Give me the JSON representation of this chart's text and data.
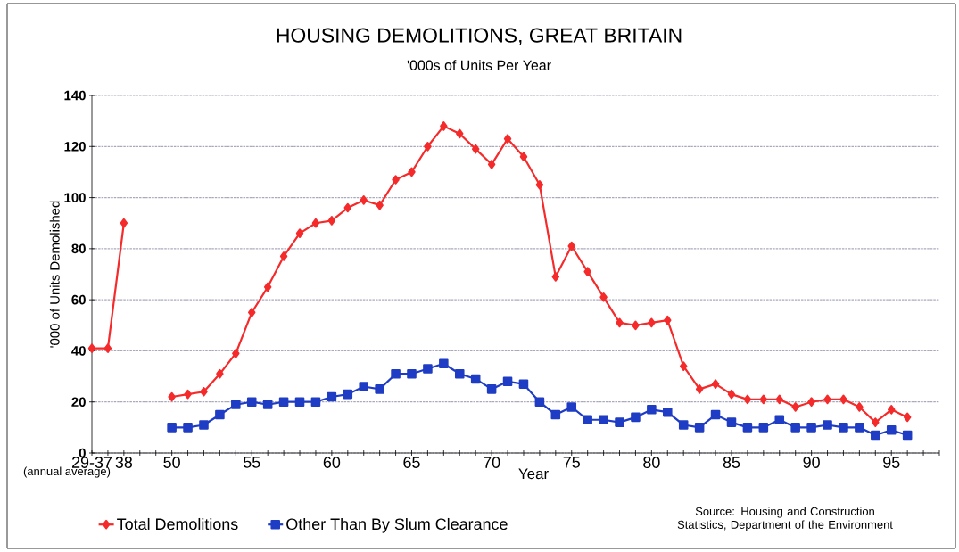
{
  "chart_data": {
    "type": "line",
    "title": "HOUSING DEMOLITIONS, GREAT BRITAIN",
    "subtitle": "'000s of Units Per Year",
    "xlabel": "Year",
    "ylabel": "'000 of Units Demolished",
    "categories": [
      "29-37",
      null,
      "38",
      null,
      null,
      "50",
      null,
      null,
      null,
      null,
      "55",
      null,
      null,
      null,
      null,
      "60",
      null,
      null,
      null,
      null,
      "65",
      null,
      null,
      null,
      null,
      "70",
      null,
      null,
      null,
      null,
      "75",
      null,
      null,
      null,
      null,
      "80",
      null,
      null,
      null,
      null,
      "85",
      null,
      null,
      null,
      null,
      "90",
      null,
      null,
      null,
      null,
      "95",
      null,
      null,
      null
    ],
    "series": [
      {
        "name": "Total Demolitions",
        "color": "#f52a2a",
        "marker": "diamond",
        "values": [
          41,
          41,
          90,
          null,
          null,
          22,
          23,
          24,
          31,
          39,
          55,
          65,
          77,
          86,
          90,
          91,
          96,
          99,
          97,
          107,
          110,
          120,
          128,
          125,
          119,
          113,
          123,
          116,
          105,
          69,
          81,
          71,
          61,
          51,
          50,
          51,
          52,
          34,
          25,
          27,
          23,
          21,
          21,
          21,
          18,
          20,
          21,
          21,
          18,
          12,
          17,
          14,
          null,
          null
        ]
      },
      {
        "name": "Other Than By Slum Clearance",
        "color": "#1f3cc4",
        "marker": "square",
        "values": [
          null,
          null,
          null,
          null,
          null,
          10,
          10,
          11,
          15,
          19,
          20,
          19,
          20,
          20,
          20,
          22,
          23,
          26,
          25,
          31,
          31,
          33,
          35,
          31,
          29,
          25,
          28,
          27,
          20,
          15,
          18,
          13,
          13,
          12,
          14,
          17,
          16,
          11,
          10,
          15,
          12,
          10,
          10,
          13,
          10,
          10,
          11,
          10,
          10,
          7,
          9,
          7,
          null,
          null
        ]
      }
    ],
    "ylim": [
      0,
      140
    ],
    "yticks": [
      0,
      20,
      40,
      60,
      80,
      100,
      120,
      140
    ],
    "grid": "y",
    "legend": "bottom",
    "line_style": "solid",
    "annotations": [
      "(annual average)",
      "Source:  Housing and Construction Statistics, Department of the Environment"
    ]
  }
}
